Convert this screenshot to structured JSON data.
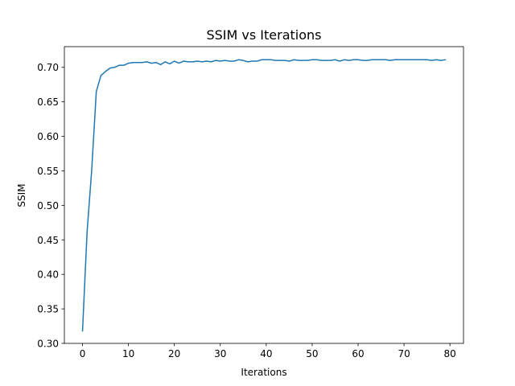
{
  "chart_data": {
    "type": "line",
    "title": "SSIM vs Iterations",
    "xlabel": "Iterations",
    "ylabel": "SSIM",
    "xlim": [
      -3.95,
      82.95
    ],
    "ylim": [
      0.3,
      0.73
    ],
    "xticks": [
      0,
      10,
      20,
      30,
      40,
      50,
      60,
      70,
      80
    ],
    "xtick_labels": [
      "0",
      "10",
      "20",
      "30",
      "40",
      "50",
      "60",
      "70",
      "80"
    ],
    "yticks": [
      0.3,
      0.35,
      0.4,
      0.45,
      0.5,
      0.55,
      0.6,
      0.65,
      0.7
    ],
    "ytick_labels": [
      "0.30",
      "0.35",
      "0.40",
      "0.45",
      "0.50",
      "0.55",
      "0.60",
      "0.65",
      "0.70"
    ],
    "grid": false,
    "legend": "none",
    "series": [
      {
        "color": "#1f77b4",
        "x": [
          0,
          1,
          2,
          3,
          4,
          5,
          6,
          7,
          8,
          9,
          10,
          11,
          12,
          13,
          14,
          15,
          16,
          17,
          18,
          19,
          20,
          21,
          22,
          23,
          24,
          25,
          26,
          27,
          28,
          29,
          30,
          31,
          32,
          33,
          34,
          35,
          36,
          37,
          38,
          39,
          40,
          41,
          42,
          43,
          44,
          45,
          46,
          47,
          48,
          49,
          50,
          51,
          52,
          53,
          54,
          55,
          56,
          57,
          58,
          59,
          60,
          61,
          62,
          63,
          64,
          65,
          66,
          67,
          68,
          69,
          70,
          71,
          72,
          73,
          74,
          75,
          76,
          77,
          78,
          79
        ],
        "y": [
          0.318,
          0.462,
          0.551,
          0.665,
          0.688,
          0.694,
          0.699,
          0.7,
          0.703,
          0.703,
          0.706,
          0.707,
          0.707,
          0.707,
          0.708,
          0.706,
          0.707,
          0.704,
          0.708,
          0.705,
          0.709,
          0.706,
          0.709,
          0.708,
          0.708,
          0.709,
          0.708,
          0.709,
          0.708,
          0.71,
          0.709,
          0.71,
          0.709,
          0.709,
          0.711,
          0.71,
          0.708,
          0.709,
          0.709,
          0.711,
          0.711,
          0.711,
          0.71,
          0.71,
          0.71,
          0.709,
          0.711,
          0.71,
          0.71,
          0.71,
          0.711,
          0.711,
          0.71,
          0.71,
          0.71,
          0.711,
          0.709,
          0.711,
          0.71,
          0.711,
          0.711,
          0.71,
          0.71,
          0.711,
          0.711,
          0.711,
          0.711,
          0.71,
          0.711,
          0.711,
          0.711,
          0.711,
          0.711,
          0.711,
          0.711,
          0.711,
          0.71,
          0.711,
          0.71,
          0.711
        ]
      }
    ]
  }
}
